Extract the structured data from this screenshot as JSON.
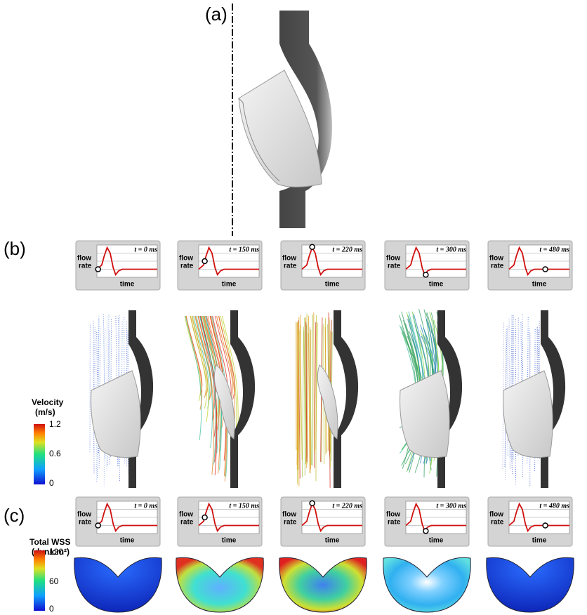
{
  "panels": {
    "a": {
      "label": "(a)"
    },
    "b": {
      "label": "(b)",
      "colorbar": {
        "title": "Velocity",
        "unit": "(m/s)",
        "ticks": [
          1.2,
          0.6,
          0
        ]
      }
    },
    "c": {
      "label": "(c)",
      "colorbar": {
        "title": "Total WSS",
        "unit": "(dyn/cm²)",
        "ticks": [
          120,
          60,
          0
        ]
      }
    }
  },
  "inset": {
    "ylabel_top": "flow",
    "ylabel_bottom": "rate",
    "xlabel": "time"
  },
  "timepoints": [
    "t = 0 ms",
    "t = 150 ms",
    "t = 220 ms",
    "t = 300 ms",
    "t = 480 ms"
  ]
}
